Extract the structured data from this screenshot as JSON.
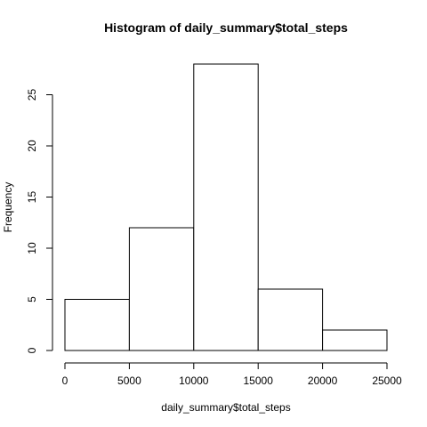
{
  "chart_data": {
    "type": "bar",
    "title": "Histogram of daily_summary$total_steps",
    "xlabel": "daily_summary$total_steps",
    "ylabel": "Frequency",
    "bins": [
      [
        0,
        5000
      ],
      [
        5000,
        10000
      ],
      [
        10000,
        15000
      ],
      [
        15000,
        20000
      ],
      [
        20000,
        25000
      ]
    ],
    "values": [
      5,
      12,
      28,
      6,
      2
    ],
    "xticks": [
      "0",
      "5000",
      "10000",
      "15000",
      "20000",
      "25000"
    ],
    "yticks": [
      "0",
      "5",
      "10",
      "15",
      "20",
      "25"
    ],
    "xlim": [
      0,
      25000
    ],
    "ylim": [
      0,
      28
    ],
    "grid": false,
    "bar_fill": "#ffffff",
    "bar_stroke": "#000000"
  }
}
